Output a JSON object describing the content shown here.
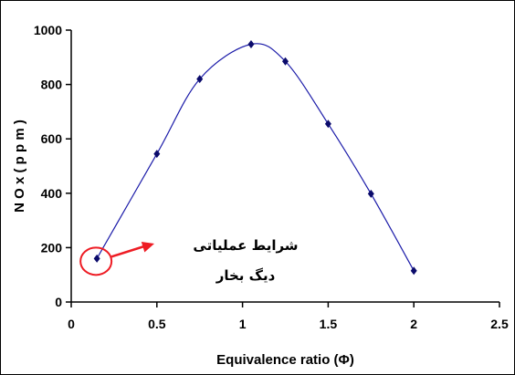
{
  "chart_data": {
    "type": "scatter",
    "series": [
      {
        "x": [
          0.15,
          0.5,
          0.75,
          1.05,
          1.25,
          1.5,
          1.75,
          2.0
        ],
        "values": [
          160,
          545,
          820,
          948,
          885,
          655,
          398,
          115
        ]
      }
    ],
    "xlabel": "Equivalence ratio (Φ)",
    "ylabel": "N O x  ( p p m )",
    "xlim": [
      0,
      2.5
    ],
    "ylim": [
      0,
      1000
    ],
    "x_ticks": [
      "0",
      "0.5",
      "1",
      "1.5",
      "2",
      "2.5"
    ],
    "y_ticks": [
      "0",
      "200",
      "400",
      "600",
      "800",
      "1000"
    ],
    "grid": false,
    "smooth_line": true,
    "annotation": {
      "line1": "شرایط عملیاتی",
      "line2": "دیگ بخار",
      "points_to_x": 0.15,
      "points_to_y": 160
    },
    "colors": {
      "line": "#1a1aa8",
      "marker": "#0b0b6b",
      "annotation": "#ee1c24"
    }
  }
}
